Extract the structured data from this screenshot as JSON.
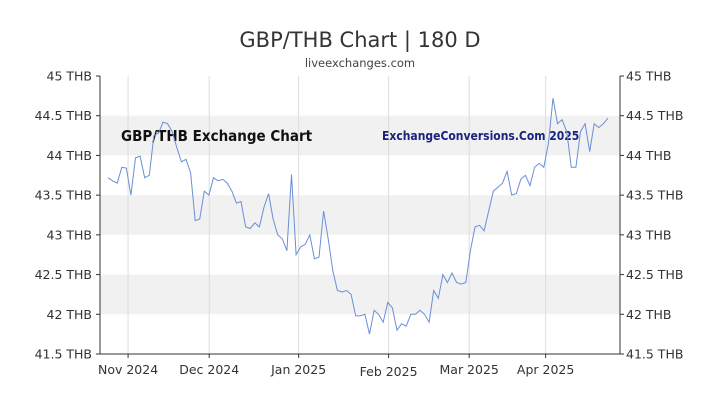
{
  "chart_data": {
    "type": "line",
    "title": "GBP/THB Chart | 180 D",
    "subtitle": "liveexchanges.com",
    "xlabel": "",
    "ylabel": "",
    "ylim": [
      41.5,
      45
    ],
    "y_ticks": [
      "41.5 THB",
      "42 THB",
      "42.5 THB",
      "43 THB",
      "43.5 THB",
      "44 THB",
      "44.5 THB",
      "45 THB"
    ],
    "x_ticks": [
      "Nov 2024",
      "Dec 2024",
      "Jan 2025",
      "Feb 2025",
      "Mar 2025",
      "Apr 2025"
    ],
    "annotations": [
      "GBP/THB Exchange Chart",
      "ExchangeConversions.Com 2025"
    ],
    "grid": "alternating horizontal bands, vertical month lines",
    "series": [
      {
        "color": "#6a8fd6",
        "values": [
          43.72,
          43.68,
          43.65,
          43.85,
          43.84,
          43.5,
          43.97,
          43.99,
          43.72,
          43.75,
          44.25,
          44.28,
          44.42,
          44.4,
          44.3,
          44.1,
          43.92,
          43.95,
          43.78,
          43.18,
          43.2,
          43.55,
          43.5,
          43.72,
          43.68,
          43.7,
          43.65,
          43.55,
          43.4,
          43.42,
          43.1,
          43.08,
          43.15,
          43.1,
          43.35,
          43.52,
          43.2,
          43.0,
          42.95,
          42.8,
          43.76,
          42.75,
          42.85,
          42.88,
          43.0,
          42.7,
          42.72,
          43.3,
          42.95,
          42.55,
          42.3,
          42.28,
          42.3,
          42.25,
          41.98,
          41.98,
          42.0,
          41.75,
          42.05,
          42.0,
          41.9,
          42.15,
          42.08,
          41.8,
          41.88,
          41.85,
          42.0,
          42.0,
          42.05,
          42.0,
          41.9,
          42.3,
          42.2,
          42.5,
          42.4,
          42.52,
          42.4,
          42.38,
          42.4,
          42.8,
          43.1,
          43.12,
          43.05,
          43.3,
          43.55,
          43.6,
          43.65,
          43.8,
          43.5,
          43.52,
          43.7,
          43.75,
          43.62,
          43.85,
          43.9,
          43.85,
          44.15,
          44.72,
          44.4,
          44.45,
          44.3,
          43.85,
          43.85,
          44.3,
          44.4,
          44.05,
          44.4,
          44.35,
          44.4,
          44.47
        ]
      }
    ]
  }
}
